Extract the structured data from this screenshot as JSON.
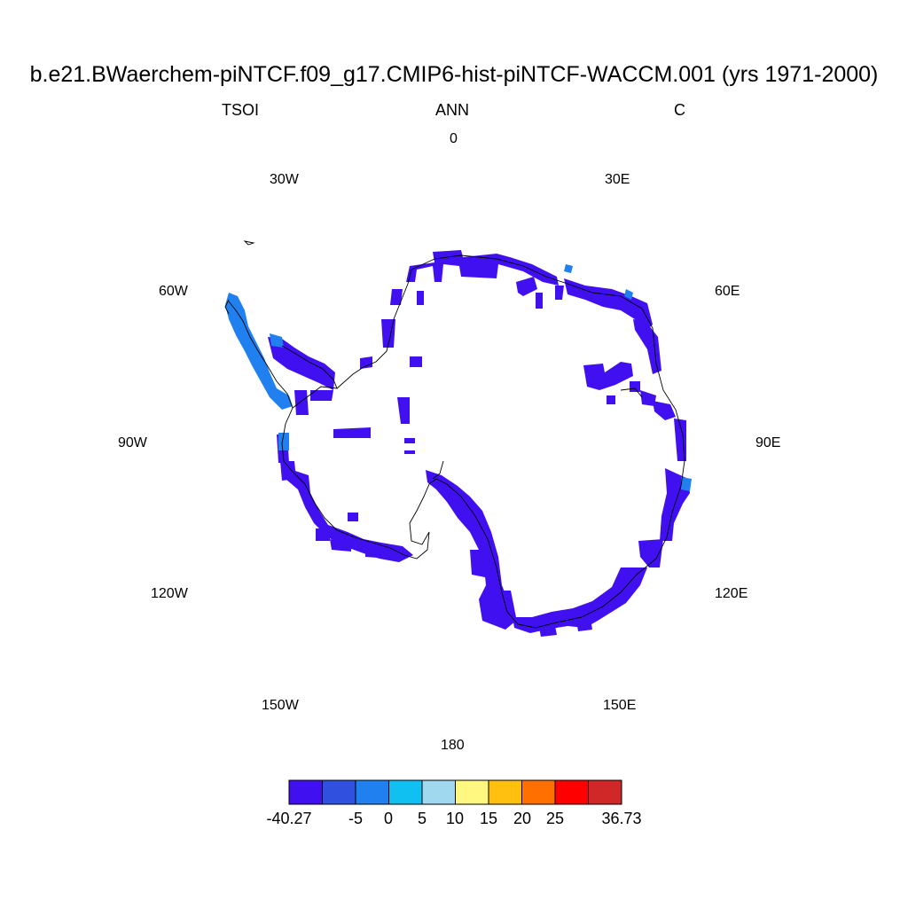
{
  "title": "b.e21.BWaerchem-piNTCF.f09_g17.CMIP6-hist-piNTCF-WACCM.001 (yrs 1971-2000)",
  "variable": "TSOI",
  "season": "ANN",
  "units": "C",
  "longitude_labels": {
    "lon_0": "0",
    "lon_30e": "30E",
    "lon_60e": "60E",
    "lon_90e": "90E",
    "lon_120e": "120E",
    "lon_150e": "150E",
    "lon_180": "180",
    "lon_150w": "150W",
    "lon_120w": "120W",
    "lon_90w": "90W",
    "lon_60w": "60W",
    "lon_30w": "30W"
  },
  "colorbar": {
    "min_label": "-40.27",
    "max_label": "36.73",
    "levels": [
      "-5",
      "0",
      "5",
      "10",
      "15",
      "20",
      "25"
    ],
    "colors": [
      "#4010f0",
      "#3050e0",
      "#2080f0",
      "#10c0f0",
      "#a0d8f0",
      "#fff880",
      "#ffc010",
      "#ff7000",
      "#ff0000",
      "#d02828"
    ]
  },
  "map": {
    "projection": "south polar stereographic",
    "region": "Antarctica",
    "dominant_color": "#4010f0",
    "peninsula_color": "#2080f0"
  }
}
